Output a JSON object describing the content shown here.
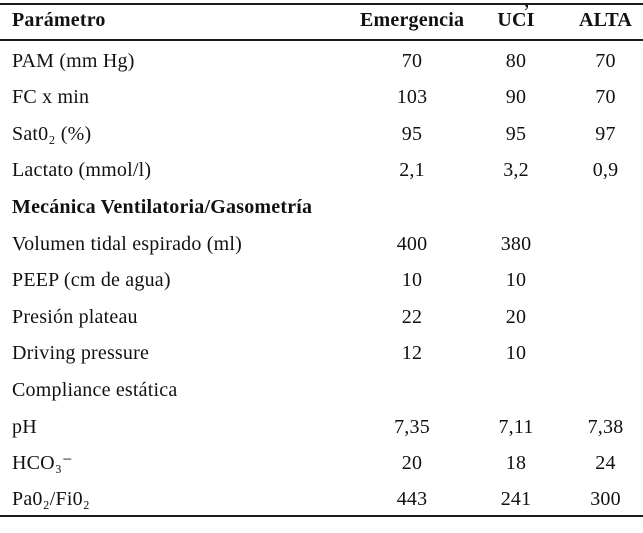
{
  "artifact": {
    "cropped_text_fragment": ","
  },
  "colors": {
    "text": "#111111",
    "rule": "#1b1b1b",
    "background": "#ffffff"
  },
  "table": {
    "columns": [
      "Parámetro",
      "Emergencia",
      "UCI",
      "ALTA"
    ],
    "rows": [
      {
        "type": "data",
        "label": "PAM (mm Hg)",
        "values": [
          "70",
          "80",
          "70"
        ]
      },
      {
        "type": "data",
        "label": "FC x min",
        "values": [
          "103",
          "90",
          "70"
        ]
      },
      {
        "type": "data",
        "label": "Sat0₂ (%)",
        "values": [
          "95",
          "95",
          "97"
        ]
      },
      {
        "type": "data",
        "label": "Lactato (mmol/l)",
        "values": [
          "2,1",
          "3,2",
          "0,9"
        ]
      },
      {
        "type": "section",
        "label": "Mecánica Ventilatoria/Gasometría",
        "values": [
          "",
          "",
          ""
        ]
      },
      {
        "type": "data",
        "label": "Volumen tidal espirado (ml)",
        "values": [
          "400",
          "380",
          ""
        ]
      },
      {
        "type": "data",
        "label": "PEEP (cm de agua)",
        "values": [
          "10",
          "10",
          ""
        ]
      },
      {
        "type": "data",
        "label": "Presión plateau",
        "values": [
          "22",
          "20",
          ""
        ]
      },
      {
        "type": "data",
        "label": "Driving pressure",
        "values": [
          "12",
          "10",
          ""
        ]
      },
      {
        "type": "data",
        "label": "Compliance estática",
        "values": [
          "",
          "",
          ""
        ]
      },
      {
        "type": "data",
        "label": "pH",
        "values": [
          "7,35",
          "7,11",
          "7,38"
        ]
      },
      {
        "type": "data",
        "label": "HCO₃⁻",
        "values": [
          "20",
          "18",
          "24"
        ]
      },
      {
        "type": "data",
        "label": "Pa0₂/Fi0₂",
        "values": [
          "443",
          "241",
          "300"
        ]
      }
    ]
  }
}
